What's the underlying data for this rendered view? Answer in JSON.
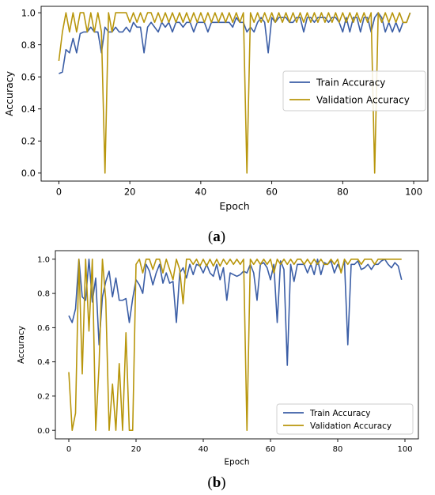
{
  "panel_labels": [
    {
      "open": "(",
      "letter": "a",
      "close": ")"
    },
    {
      "open": "(",
      "letter": "b",
      "close": ")"
    }
  ],
  "colors": {
    "train": "#3b5ea6",
    "validation": "#b8960c"
  },
  "chart_data": [
    {
      "type": "line",
      "panel": "a",
      "xlabel": "Epoch",
      "ylabel": "Accuracy",
      "xlim": [
        -5,
        104
      ],
      "ylim": [
        -0.05,
        1.04
      ],
      "xticks": [
        0,
        20,
        40,
        60,
        80,
        100
      ],
      "yticks": [
        0.0,
        0.2,
        0.4,
        0.6,
        0.8,
        1.0
      ],
      "xtick_labels": [
        "0",
        "20",
        "40",
        "60",
        "80",
        "100"
      ],
      "ytick_labels": [
        "0.0",
        "0.2",
        "0.4",
        "0.6",
        "0.8",
        "1.0"
      ],
      "grid": false,
      "legend": "center-right",
      "series": [
        {
          "name": "Train Accuracy",
          "color": "#3b5ea6",
          "values": [
            0.62,
            0.63,
            0.77,
            0.75,
            0.84,
            0.75,
            0.87,
            0.88,
            0.88,
            0.91,
            0.88,
            0.88,
            0.75,
            0.91,
            0.88,
            0.88,
            0.91,
            0.88,
            0.88,
            0.91,
            0.88,
            0.94,
            0.91,
            0.91,
            0.75,
            0.91,
            0.94,
            0.91,
            0.88,
            0.94,
            0.91,
            0.94,
            0.88,
            0.94,
            0.94,
            0.91,
            0.94,
            0.94,
            0.88,
            0.94,
            0.94,
            0.94,
            0.88,
            0.94,
            0.94,
            0.94,
            0.94,
            0.94,
            0.94,
            0.91,
            0.97,
            0.94,
            0.94,
            0.88,
            0.91,
            0.88,
            0.94,
            0.97,
            0.94,
            0.75,
            0.97,
            0.94,
            0.97,
            0.97,
            0.97,
            0.94,
            0.94,
            0.97,
            0.97,
            0.88,
            0.97,
            0.97,
            0.94,
            0.97,
            0.97,
            0.97,
            0.94,
            0.97,
            0.97,
            0.94,
            0.88,
            0.97,
            0.88,
            0.97,
            0.97,
            0.88,
            0.97,
            0.97,
            0.88,
            0.97,
            1.0,
            0.97,
            0.88,
            0.94,
            0.88,
            0.94,
            0.88,
            0.94,
            0.94,
            1.0
          ]
        },
        {
          "name": "Validation Accuracy",
          "color": "#b8960c",
          "values": [
            0.7,
            0.88,
            1.0,
            0.88,
            1.0,
            0.88,
            1.0,
            1.0,
            0.88,
            1.0,
            0.88,
            1.0,
            0.88,
            0.0,
            1.0,
            0.88,
            1.0,
            1.0,
            1.0,
            1.0,
            0.94,
            1.0,
            0.94,
            1.0,
            0.94,
            1.0,
            1.0,
            0.94,
            1.0,
            0.94,
            1.0,
            0.94,
            1.0,
            0.94,
            1.0,
            0.94,
            1.0,
            0.94,
            1.0,
            0.94,
            1.0,
            0.94,
            1.0,
            0.94,
            1.0,
            0.94,
            1.0,
            0.94,
            1.0,
            0.94,
            1.0,
            0.94,
            1.0,
            0.0,
            1.0,
            0.94,
            1.0,
            0.94,
            1.0,
            0.94,
            1.0,
            0.94,
            1.0,
            0.94,
            1.0,
            0.94,
            1.0,
            0.94,
            1.0,
            0.94,
            1.0,
            0.94,
            1.0,
            0.94,
            1.0,
            0.94,
            1.0,
            0.94,
            1.0,
            0.94,
            1.0,
            0.94,
            1.0,
            0.94,
            1.0,
            0.94,
            1.0,
            0.94,
            1.0,
            0.0,
            1.0,
            0.94,
            1.0,
            0.94,
            1.0,
            0.94,
            1.0,
            0.94,
            0.94,
            1.0
          ]
        }
      ]
    },
    {
      "type": "line",
      "panel": "b",
      "xlabel": "Epoch",
      "ylabel": "Accuracy",
      "xlim": [
        -4,
        104
      ],
      "ylim": [
        -0.05,
        1.05
      ],
      "xticks": [
        0,
        20,
        40,
        60,
        80,
        100
      ],
      "yticks": [
        0.0,
        0.2,
        0.4,
        0.6,
        0.8,
        1.0
      ],
      "xtick_labels": [
        "0",
        "20",
        "40",
        "60",
        "80",
        "100"
      ],
      "ytick_labels": [
        "0.0",
        "0.2",
        "0.4",
        "0.6",
        "0.8",
        "1.0"
      ],
      "grid": false,
      "legend": "bottom-right",
      "series": [
        {
          "name": "Train Accuracy",
          "color": "#3b5ea6",
          "values": [
            0.67,
            0.63,
            0.71,
            1.0,
            0.78,
            0.76,
            1.0,
            0.75,
            0.89,
            0.5,
            0.78,
            0.87,
            0.93,
            0.78,
            0.89,
            0.76,
            0.76,
            0.77,
            0.63,
            0.77,
            0.88,
            0.85,
            0.8,
            0.97,
            0.93,
            0.85,
            0.92,
            0.97,
            0.86,
            0.92,
            0.86,
            0.87,
            0.63,
            0.92,
            0.95,
            0.89,
            0.97,
            0.91,
            0.97,
            0.96,
            0.92,
            0.97,
            0.92,
            0.9,
            0.97,
            0.88,
            0.95,
            0.76,
            0.92,
            0.91,
            0.9,
            0.91,
            0.93,
            0.92,
            0.97,
            0.92,
            0.76,
            0.97,
            0.98,
            0.95,
            0.88,
            0.97,
            0.63,
            0.99,
            0.94,
            0.38,
            0.97,
            0.87,
            0.97,
            0.97,
            0.97,
            0.92,
            0.97,
            0.91,
            1.0,
            0.91,
            0.98,
            0.97,
            0.99,
            0.92,
            0.97,
            0.93,
            0.99,
            0.5,
            0.97,
            0.97,
            0.99,
            0.94,
            0.95,
            0.97,
            0.94,
            0.97,
            0.97,
            0.99,
            1.0,
            0.97,
            0.95,
            0.98,
            0.96,
            0.88
          ]
        },
        {
          "name": "Validation Accuracy",
          "color": "#b8960c",
          "values": [
            0.34,
            0.0,
            0.1,
            1.0,
            0.33,
            1.0,
            0.58,
            1.0,
            0.0,
            0.38,
            1.0,
            0.76,
            0.0,
            0.27,
            0.0,
            0.39,
            0.0,
            0.57,
            0.0,
            0.0,
            0.97,
            1.0,
            0.92,
            1.0,
            1.0,
            0.94,
            1.0,
            1.0,
            0.92,
            1.0,
            0.94,
            0.88,
            1.0,
            0.94,
            0.74,
            1.0,
            1.0,
            0.97,
            1.0,
            0.96,
            1.0,
            0.96,
            1.0,
            0.96,
            1.0,
            0.96,
            1.0,
            0.97,
            1.0,
            0.97,
            1.0,
            0.97,
            1.0,
            0.0,
            1.0,
            0.97,
            1.0,
            0.97,
            1.0,
            0.97,
            1.0,
            0.92,
            1.0,
            0.97,
            1.0,
            0.97,
            1.0,
            0.97,
            1.0,
            1.0,
            0.97,
            1.0,
            0.97,
            1.0,
            0.97,
            1.0,
            0.97,
            0.97,
            1.0,
            0.97,
            1.0,
            0.92,
            1.0,
            0.97,
            1.0,
            1.0,
            1.0,
            0.97,
            1.0,
            1.0,
            1.0,
            0.97,
            1.0,
            1.0,
            1.0,
            1.0,
            1.0,
            1.0,
            1.0,
            1.0
          ]
        }
      ]
    }
  ]
}
